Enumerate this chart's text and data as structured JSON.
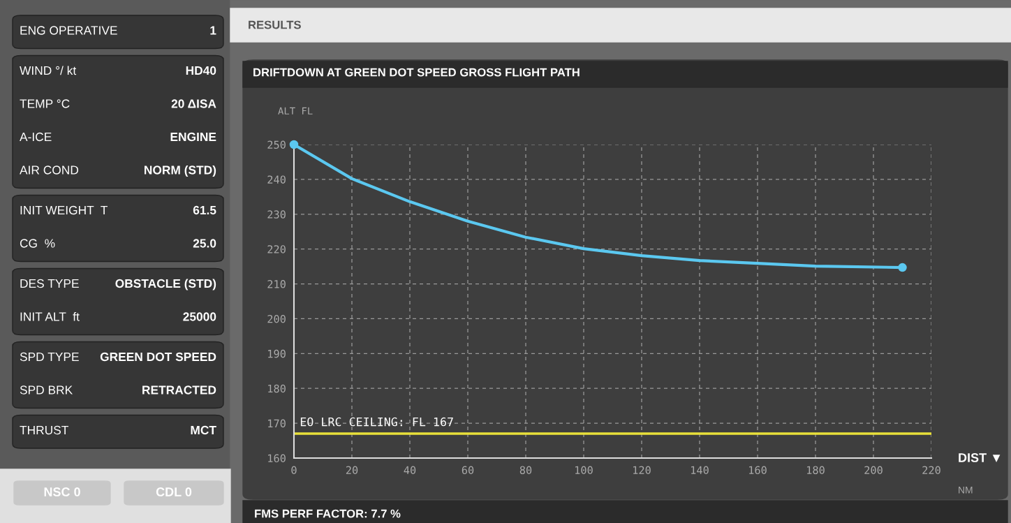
{
  "chart_data": {
    "type": "line",
    "title": "DRIFTDOWN AT GREEN DOT SPEED GROSS FLIGHT PATH",
    "xlabel": "DIST ▼",
    "ylabel": "ALT FL",
    "x": [
      0,
      20,
      40,
      60,
      80,
      100,
      120,
      140,
      160,
      180,
      210
    ],
    "series": [
      {
        "color": "#5bc8f0",
        "values": [
          250,
          240.2,
          233.6,
          228,
          223.4,
          220.1,
          218.1,
          216.7,
          215.9,
          215.1,
          214.7
        ]
      }
    ],
    "grid": true,
    "xlim": [
      0,
      220
    ],
    "xticks": [
      0,
      20,
      40,
      60,
      80,
      100,
      120,
      140,
      160,
      180,
      200,
      220
    ],
    "ylim": [
      160,
      250
    ],
    "yticks": [
      160,
      170,
      180,
      190,
      200,
      210,
      220,
      230,
      240,
      250
    ],
    "ref_lines": [
      {
        "axis": "y",
        "value": 167,
        "label": "EO LRC CEILING: FL 167",
        "color": "#e8e03a"
      }
    ],
    "annotations": [
      "RESULTS",
      "NM",
      "FMS PERF FACTOR: 7.7 %",
      "ENG OPERATIVE",
      "1",
      "WIND °/ kt",
      "HD40",
      "TEMP °C",
      "20 ΔISA",
      "A-ICE",
      "ENGINE",
      "AIR COND",
      "NORM (STD)",
      "INIT WEIGHT  T",
      "61.5",
      "CG  %",
      "25.0",
      "DES TYPE",
      "OBSTACLE (STD)",
      "INIT ALT  ft",
      "25000",
      "SPD TYPE",
      "GREEN DOT SPEED",
      "SPD BRK",
      "RETRACTED",
      "THRUST",
      "MCT",
      "NSC 0",
      "CDL 0"
    ]
  }
}
